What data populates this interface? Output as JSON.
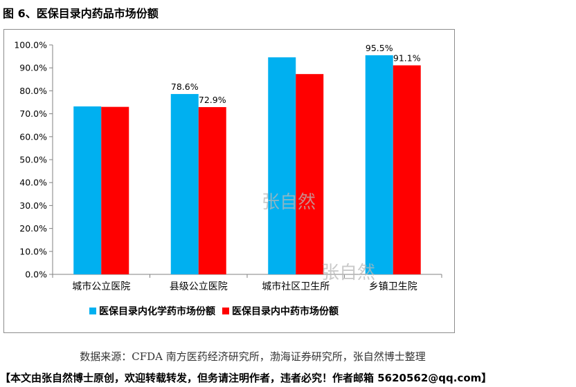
{
  "figure": {
    "title": "图 6、医保目录内药品市场份额"
  },
  "chart_data": {
    "type": "bar",
    "title": "",
    "xlabel": "",
    "ylabel": "",
    "ylim": [
      0,
      100
    ],
    "ytick_step": 10,
    "y_tick_labels": [
      "0.0%",
      "10.0%",
      "20.0%",
      "30.0%",
      "40.0%",
      "50.0%",
      "60.0%",
      "70.0%",
      "80.0%",
      "90.0%",
      "100.0%"
    ],
    "grid": false,
    "legend_position": "bottom",
    "categories": [
      "城市公立医院",
      "县级公立医院",
      "城市社区卫生所",
      "乡镇卫生院"
    ],
    "series": [
      {
        "name": "医保目录内化学药市场份额",
        "color": "#00b0f0",
        "values": [
          73.2,
          78.6,
          94.6,
          95.5
        ],
        "labels": [
          "",
          "78.6%",
          "",
          "95.5%"
        ]
      },
      {
        "name": "医保目录内中药市场份额",
        "color": "#ff0000",
        "values": [
          73.0,
          72.9,
          87.3,
          91.1
        ],
        "labels": [
          "",
          "72.9%",
          "",
          "91.1%"
        ]
      }
    ],
    "watermarks": [
      "张自然",
      "张自然"
    ]
  },
  "footer": {
    "source": "数据来源：CFDA 南方医药经济研究所，渤海证券研究所，张自然博士整理",
    "notice": "【本文由张自然博士原创，欢迎转载转发，但务请注明作者，违者必究！作者邮箱 5620562@qq.com】"
  }
}
